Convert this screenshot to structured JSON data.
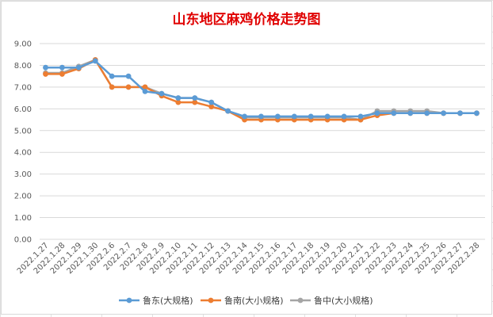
{
  "chart_data": {
    "type": "line",
    "title": "山东地区麻鸡价格走势图",
    "xlabel": "",
    "ylabel": "",
    "ylim": [
      0,
      9
    ],
    "yticks": [
      "0.00",
      "1.00",
      "2.00",
      "3.00",
      "4.00",
      "5.00",
      "6.00",
      "7.00",
      "8.00",
      "9.00"
    ],
    "grid": true,
    "legend_position": "bottom",
    "categories": [
      "2022.1.27",
      "2022.1.28",
      "2022.1.29",
      "2022.1.30",
      "2022.2.6",
      "2022.2.7",
      "2022.2.8",
      "2022.2.9",
      "2022.2.10",
      "2022.2.11",
      "2022.2.12",
      "2022.2.13",
      "2022.2.14",
      "2022.2.15",
      "2022.2.16",
      "2022.2.17",
      "2022.2.18",
      "2022.2.19",
      "2022.2.20",
      "2022.2.21",
      "2022.2.22",
      "2022.2.23",
      "2022.2.24",
      "2022.2.25",
      "2022.2.26",
      "2022.2.27",
      "2022.2.28"
    ],
    "series": [
      {
        "name": "鲁东(大规格)",
        "color": "#5b9bd5",
        "values": [
          7.9,
          7.9,
          7.9,
          8.2,
          7.5,
          7.5,
          6.8,
          6.7,
          6.5,
          6.5,
          6.3,
          5.9,
          5.65,
          5.65,
          5.65,
          5.65,
          5.65,
          5.65,
          5.65,
          5.65,
          5.8,
          5.8,
          5.8,
          5.8,
          5.8,
          5.8,
          5.8
        ]
      },
      {
        "name": "鲁南(大小规格)",
        "color": "#ed7d31",
        "values": [
          7.6,
          7.6,
          7.85,
          8.25,
          7.0,
          7.0,
          7.0,
          6.6,
          6.3,
          6.3,
          6.1,
          5.9,
          5.5,
          5.5,
          5.5,
          5.5,
          5.5,
          5.5,
          5.5,
          5.5,
          5.7,
          5.8,
          5.8,
          5.8,
          5.8,
          5.8,
          5.8
        ]
      },
      {
        "name": "鲁中(大小规格)",
        "color": "#a5a5a5",
        "values": [
          7.65,
          7.65,
          7.95,
          8.25,
          7.0,
          7.0,
          7.0,
          6.7,
          6.5,
          6.5,
          6.3,
          5.9,
          5.6,
          5.6,
          5.6,
          5.6,
          5.6,
          5.6,
          5.6,
          5.5,
          5.9,
          5.9,
          5.9,
          5.9,
          5.8,
          5.8,
          5.8
        ]
      }
    ]
  }
}
